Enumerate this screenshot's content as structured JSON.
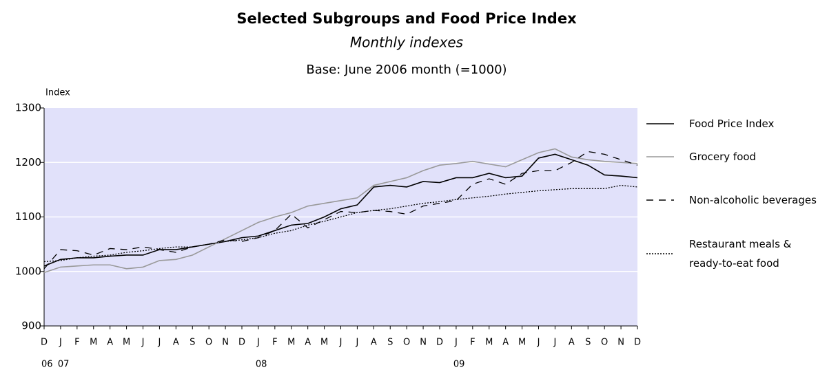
{
  "chart_data": {
    "type": "line",
    "title": "Selected Subgroups and Food Price Index",
    "subtitle": "Monthly indexes",
    "note": "Base: June 2006 month (=1000)",
    "y_label": "Index",
    "categories": [
      "D",
      "J",
      "F",
      "M",
      "A",
      "M",
      "J",
      "J",
      "A",
      "S",
      "O",
      "N",
      "D",
      "J",
      "F",
      "M",
      "A",
      "M",
      "J",
      "J",
      "A",
      "S",
      "O",
      "N",
      "D",
      "J",
      "F",
      "M",
      "A",
      "M",
      "J",
      "J",
      "A",
      "S",
      "O",
      "N",
      "D"
    ],
    "year_labels": [
      "06",
      "07",
      null,
      null,
      null,
      null,
      null,
      null,
      null,
      null,
      null,
      null,
      null,
      "08",
      null,
      null,
      null,
      null,
      null,
      null,
      null,
      null,
      null,
      null,
      null,
      "09",
      null,
      null,
      null,
      null,
      null,
      null,
      null,
      null,
      null,
      null,
      null
    ],
    "ylim": [
      900,
      1300
    ],
    "yticks": [
      900,
      1000,
      1100,
      1200,
      1300
    ],
    "grid": true,
    "background": "#e1e1fa",
    "series": [
      {
        "name": "Food Price Index",
        "color": "#000000",
        "style": "solid",
        "values": [
          1010,
          1022,
          1025,
          1025,
          1028,
          1030,
          1030,
          1040,
          1040,
          1045,
          1050,
          1055,
          1062,
          1065,
          1075,
          1085,
          1088,
          1100,
          1115,
          1122,
          1155,
          1158,
          1155,
          1165,
          1163,
          1172,
          1172,
          1180,
          1172,
          1175,
          1208,
          1215,
          1205,
          1195,
          1177,
          1175,
          1172
        ]
      },
      {
        "name": "Grocery food",
        "color": "#999999",
        "style": "solid",
        "values": [
          998,
          1008,
          1010,
          1012,
          1012,
          1005,
          1008,
          1020,
          1022,
          1030,
          1045,
          1060,
          1075,
          1090,
          1100,
          1108,
          1120,
          1125,
          1130,
          1135,
          1158,
          1165,
          1172,
          1185,
          1195,
          1198,
          1202,
          1197,
          1192,
          1205,
          1218,
          1225,
          1210,
          1205,
          1202,
          1200,
          1198
        ]
      },
      {
        "name": "Non-alcoholic beverages",
        "color": "#000000",
        "style": "dashed",
        "values": [
          1005,
          1040,
          1038,
          1030,
          1042,
          1040,
          1045,
          1040,
          1035,
          1045,
          1050,
          1058,
          1055,
          1062,
          1075,
          1105,
          1080,
          1095,
          1110,
          1108,
          1112,
          1110,
          1105,
          1120,
          1125,
          1130,
          1160,
          1170,
          1160,
          1180,
          1185,
          1185,
          1200,
          1220,
          1215,
          1205,
          1195
        ]
      },
      {
        "name": "Restaurant meals & ready-to-eat food",
        "color": "#000000",
        "style": "dotted",
        "values": [
          1018,
          1020,
          1025,
          1028,
          1030,
          1035,
          1038,
          1042,
          1045,
          1045,
          1050,
          1055,
          1058,
          1062,
          1070,
          1075,
          1085,
          1092,
          1100,
          1108,
          1112,
          1115,
          1120,
          1125,
          1128,
          1132,
          1135,
          1138,
          1142,
          1145,
          1148,
          1150,
          1152,
          1152,
          1152,
          1158,
          1155
        ]
      }
    ]
  }
}
